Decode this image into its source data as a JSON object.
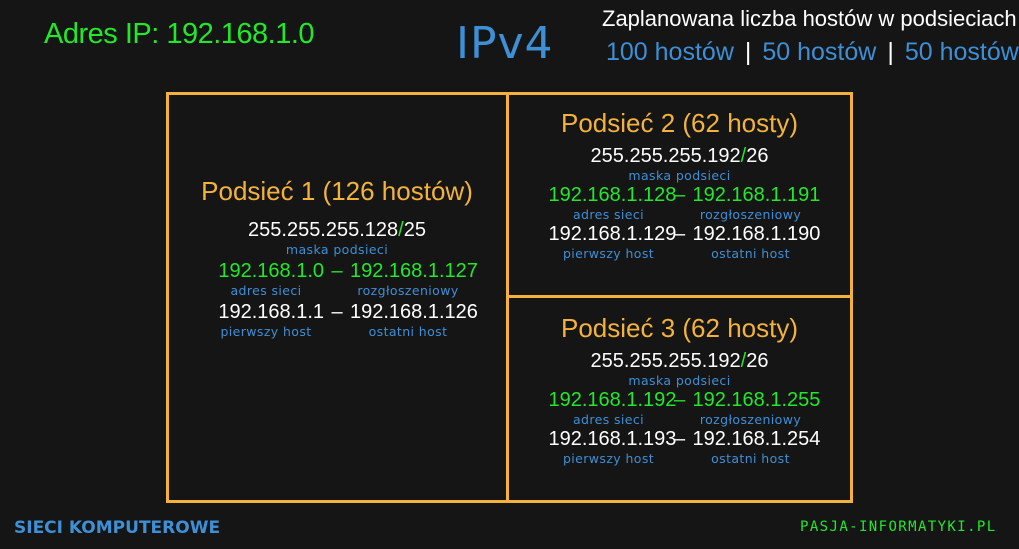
{
  "header": {
    "ip_address": "Adres IP: 192.168.1.0",
    "protocol": "IPv4",
    "plan_title": "Zaplanowana liczba hostów w podsieciach",
    "plan_hosts": [
      "100 hostów",
      "50 hostów",
      "50 hostów"
    ],
    "separator": "|"
  },
  "subnets": [
    {
      "name": "Podsieć 1 (126 hostów)",
      "mask": "255.255.255.128",
      "prefix_slash": "/",
      "prefix": "25",
      "mask_caption": "maska podsieci",
      "network": "192.168.1.0",
      "broadcast": "192.168.1.127",
      "network_caption": "adres sieci",
      "broadcast_caption": "rozgłoszeniowy",
      "first_host": "192.168.1.1",
      "last_host": "192.168.1.126",
      "first_caption": "pierwszy host",
      "last_caption": "ostatni host",
      "dash": "–"
    },
    {
      "name": "Podsieć 2 (62 hosty)",
      "mask": "255.255.255.192",
      "prefix_slash": "/",
      "prefix": "26",
      "mask_caption": "maska podsieci",
      "network": "192.168.1.128",
      "broadcast": "192.168.1.191",
      "network_caption": "adres sieci",
      "broadcast_caption": "rozgłoszeniowy",
      "first_host": "192.168.1.129",
      "last_host": "192.168.1.190",
      "first_caption": "pierwszy host",
      "last_caption": "ostatni host",
      "dash": "–"
    },
    {
      "name": "Podsieć 3 (62 hosty)",
      "mask": "255.255.255.192",
      "prefix_slash": "/",
      "prefix": "26",
      "mask_caption": "maska podsieci",
      "network": "192.168.1.192",
      "broadcast": "192.168.1.255",
      "network_caption": "adres sieci",
      "broadcast_caption": "rozgłoszeniowy",
      "first_host": "192.168.1.193",
      "last_host": "192.168.1.254",
      "first_caption": "pierwszy host",
      "last_caption": "ostatni host",
      "dash": "–"
    }
  ],
  "footer": {
    "left": "SIECI KOMPUTEROWE",
    "right": "PASJA-INFORMATYKI.PL"
  },
  "colors": {
    "background": "#151515",
    "green": "#22e82a",
    "blue": "#3d8fd6",
    "orange": "#f3b33b",
    "white": "#ffffff"
  }
}
